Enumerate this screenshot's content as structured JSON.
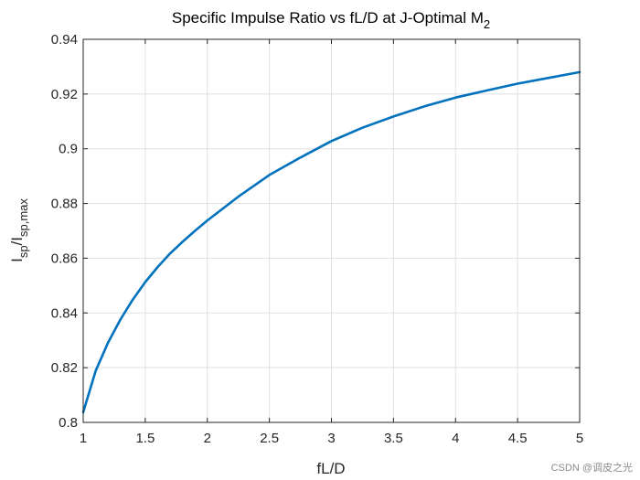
{
  "chart_data": {
    "type": "line",
    "title_main": "Specific Impulse Ratio vs fL/D at J-Optimal M",
    "title_sub": "2",
    "xlabel": "fL/D",
    "ylabel_main": "I",
    "ylabel_sub1": "sp",
    "ylabel_mid": "/I",
    "ylabel_sub2": "sp,max",
    "xlim": [
      1,
      5
    ],
    "ylim": [
      0.8,
      0.94
    ],
    "xticks": [
      1,
      1.5,
      2,
      2.5,
      3,
      3.5,
      4,
      4.5,
      5
    ],
    "xtick_labels": [
      "1",
      "1.5",
      "2",
      "2.5",
      "3",
      "3.5",
      "4",
      "4.5",
      "5"
    ],
    "yticks": [
      0.8,
      0.82,
      0.84,
      0.86,
      0.88,
      0.9,
      0.92,
      0.94
    ],
    "ytick_labels": [
      "0.8",
      "0.82",
      "0.84",
      "0.86",
      "0.88",
      "0.9",
      "0.92",
      "0.94"
    ],
    "grid": true,
    "series": [
      {
        "color": "#0072bd",
        "x": [
          1,
          1.1,
          1.2,
          1.3,
          1.4,
          1.5,
          1.6,
          1.7,
          1.8,
          1.9,
          2,
          2.25,
          2.5,
          2.75,
          3,
          3.25,
          3.5,
          3.75,
          4,
          4.25,
          4.5,
          4.75,
          5
        ],
        "y": [
          0.8037,
          0.8188,
          0.8291,
          0.8376,
          0.8449,
          0.8513,
          0.8568,
          0.8617,
          0.866,
          0.87,
          0.8738,
          0.8825,
          0.8904,
          0.8968,
          0.9028,
          0.9077,
          0.9118,
          0.9155,
          0.9187,
          0.9213,
          0.9238,
          0.9259,
          0.928
        ]
      }
    ]
  },
  "watermark": "CSDN @调皮之光",
  "colors": {
    "axis": "#262626",
    "grid": "#dfdfdf",
    "line": "#0072bd"
  }
}
